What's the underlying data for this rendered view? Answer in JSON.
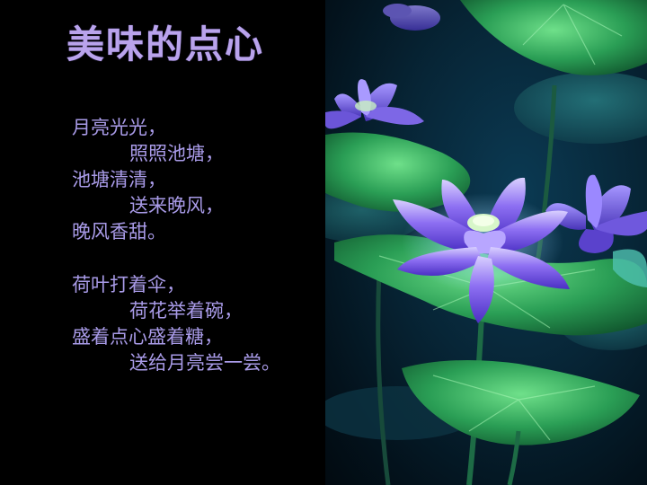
{
  "slide": {
    "title": "美味的点心",
    "poem": {
      "stanza1": [
        "月亮光光，",
        "照照池塘，",
        "池塘清清，",
        "送来晚风，",
        "晚风香甜。"
      ],
      "stanza2": [
        "荷叶打着伞，",
        "荷花举着碗，",
        "盛着点心盛着糖，",
        "送给月亮尝一尝。"
      ]
    },
    "photo": {
      "subject": "lotus-pond",
      "colors": {
        "flower": "#8a6cf0",
        "leaf": "#2fae5a",
        "background": "#06202f"
      }
    }
  }
}
